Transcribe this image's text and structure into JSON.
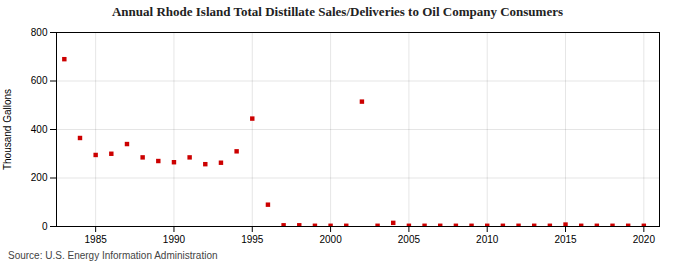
{
  "chart_data": {
    "type": "scatter",
    "title": "Annual Rhode Island Total Distillate Sales/Deliveries to Oil Company Consumers",
    "ylabel": "Thousand Gallons",
    "source": "Source: U.S. Energy Information Administration",
    "x": [
      1983,
      1984,
      1985,
      1986,
      1987,
      1988,
      1989,
      1990,
      1991,
      1992,
      1993,
      1994,
      1995,
      1996,
      1997,
      1998,
      1999,
      2000,
      2001,
      2002,
      2003,
      2004,
      2005,
      2006,
      2007,
      2008,
      2009,
      2010,
      2011,
      2012,
      2013,
      2014,
      2015,
      2016,
      2017,
      2018,
      2019,
      2020
    ],
    "values": [
      690,
      365,
      295,
      300,
      340,
      285,
      270,
      265,
      285,
      257,
      263,
      310,
      445,
      90,
      5,
      5,
      3,
      3,
      3,
      515,
      3,
      15,
      3,
      3,
      3,
      3,
      3,
      3,
      3,
      3,
      3,
      3,
      8,
      3,
      3,
      3,
      3,
      3
    ],
    "color": "#cc0000",
    "marker": "square",
    "xlim": [
      1982.5,
      2021
    ],
    "ylim": [
      0,
      800
    ],
    "xticks": [
      1985,
      1990,
      1995,
      2000,
      2005,
      2010,
      2015,
      2020
    ],
    "yticks": [
      0,
      200,
      400,
      600,
      800
    ],
    "grid": true
  }
}
